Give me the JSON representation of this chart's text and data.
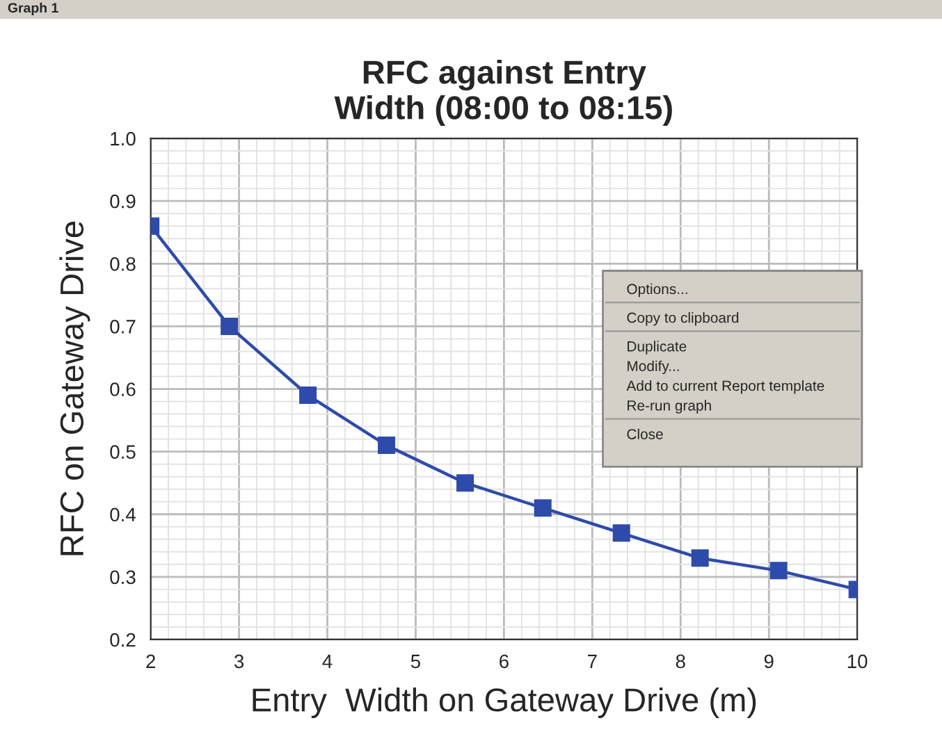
{
  "chart_data": {
    "type": "line",
    "title": "RFC against Entry\nWidth (08:00 to 08:15)",
    "xlabel": "Entry  Width on Gateway Drive (m)",
    "ylabel": "RFC on Gateway Drive",
    "x": [
      2,
      2.89,
      3.78,
      4.67,
      5.56,
      6.44,
      7.33,
      8.22,
      9.11,
      10
    ],
    "series": [
      {
        "color": "#2e4bab",
        "values": [
          0.86,
          0.7,
          0.59,
          0.51,
          0.45,
          0.41,
          0.37,
          0.33,
          0.31,
          0.28
        ]
      }
    ],
    "xlim": [
      2,
      10
    ],
    "xticks": [
      2,
      3,
      4,
      5,
      6,
      7,
      8,
      9,
      10
    ],
    "ylim": [
      0.2,
      1.0
    ],
    "yticks": [
      {
        "value": 0.2,
        "label": "0.2"
      },
      {
        "value": 0.3,
        "label": "0.3"
      },
      {
        "value": 0.4,
        "label": "0.4"
      },
      {
        "value": 0.5,
        "label": "0.5"
      },
      {
        "value": 0.6,
        "label": "0.6"
      },
      {
        "value": 0.7,
        "label": "0.7"
      },
      {
        "value": 0.8,
        "label": "0.8"
      },
      {
        "value": 0.9,
        "label": "0.9"
      },
      {
        "value": 1.0,
        "label": "1.0"
      }
    ],
    "grid": true,
    "marker": "square",
    "line_style": "solid",
    "annotations": [
      "Graph 1",
      "Options...",
      "Copy to clipboard",
      "Duplicate",
      "Modify...",
      "Add to current Report template",
      "Re-run graph",
      "Close"
    ]
  }
}
